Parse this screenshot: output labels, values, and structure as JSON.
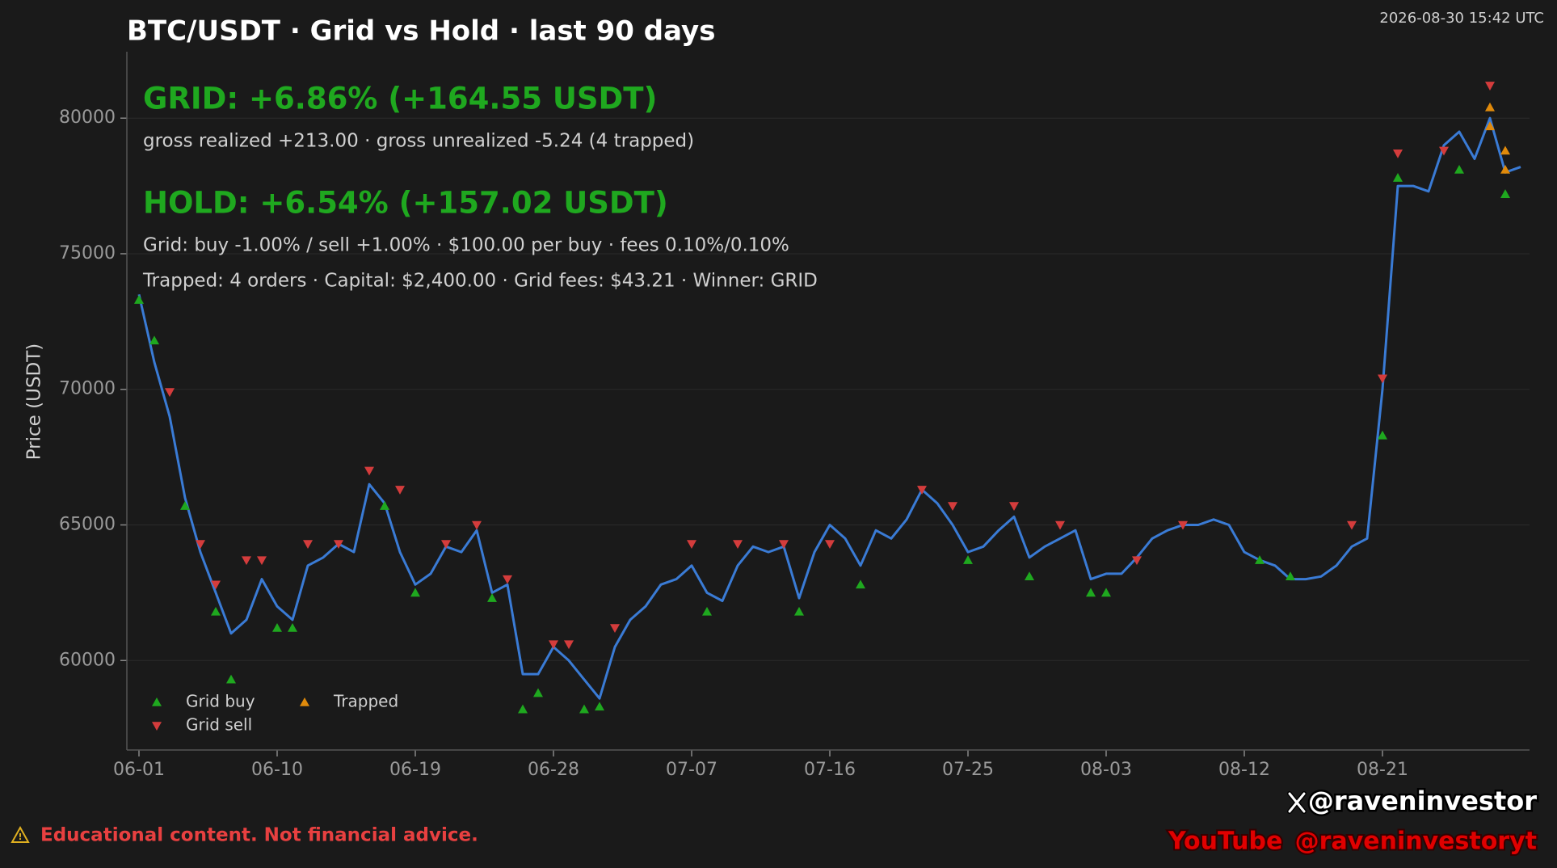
{
  "chart_data": {
    "type": "line",
    "title": "BTC/USDT · Grid vs Hold · last 90 days",
    "timestamp": "2026-08-30 15:42 UTC",
    "annotations": [
      "GRID: +6.86%  (+164.55 USDT)",
      "gross realized +213.00  ·  gross unrealized -5.24  (4 trapped)",
      "HOLD: +6.54%  (+157.02 USDT)",
      "Grid: buy -1.00% / sell +1.00%  ·  $100.00 per buy  ·  fees 0.10%/0.10%",
      "Trapped: 4 orders  ·  Capital: $2,400.00  ·  Grid fees: $43.21  ·  Winner: GRID"
    ],
    "annotation_colors": [
      "#1fa81f",
      "#d0d0d0",
      "#1fa81f",
      "#d0d0d0",
      "#d0d0d0"
    ],
    "y_label": "Price (USDT)",
    "disclaimer": "Educational content. Not financial advice.",
    "x_handle": "@raveninvestor",
    "youtube_label": "YouTube",
    "youtube_handle": "@raveninvestoryt",
    "x": [
      "06-01",
      "06-02",
      "06-03",
      "06-04",
      "06-05",
      "06-06",
      "06-07",
      "06-08",
      "06-09",
      "06-10",
      "06-11",
      "06-12",
      "06-13",
      "06-14",
      "06-15",
      "06-16",
      "06-17",
      "06-18",
      "06-19",
      "06-20",
      "06-21",
      "06-22",
      "06-23",
      "06-24",
      "06-25",
      "06-26",
      "06-27",
      "06-28",
      "06-29",
      "06-30",
      "07-01",
      "07-02",
      "07-03",
      "07-04",
      "07-05",
      "07-06",
      "07-07",
      "07-08",
      "07-09",
      "07-10",
      "07-11",
      "07-12",
      "07-13",
      "07-14",
      "07-15",
      "07-16",
      "07-17",
      "07-18",
      "07-19",
      "07-20",
      "07-21",
      "07-22",
      "07-23",
      "07-24",
      "07-25",
      "07-26",
      "07-27",
      "07-28",
      "07-29",
      "07-30",
      "07-31",
      "08-01",
      "08-02",
      "08-03",
      "08-04",
      "08-05",
      "08-06",
      "08-07",
      "08-08",
      "08-09",
      "08-10",
      "08-11",
      "08-12",
      "08-13",
      "08-14",
      "08-15",
      "08-16",
      "08-17",
      "08-18",
      "08-19",
      "08-20",
      "08-21",
      "08-22",
      "08-23",
      "08-24",
      "08-25",
      "08-26",
      "08-27",
      "08-28",
      "08-29",
      "08-30"
    ],
    "series": [
      {
        "color": "#3a7bd5",
        "values": [
          73500,
          71000,
          69000,
          66000,
          64000,
          62500,
          61000,
          61500,
          63000,
          62000,
          61500,
          63500,
          63800,
          64300,
          64000,
          66500,
          65800,
          64000,
          62800,
          63200,
          64200,
          64000,
          64800,
          62500,
          62800,
          59500,
          59500,
          60500,
          60000,
          59300,
          58600,
          60500,
          61500,
          62000,
          62800,
          63000,
          63500,
          62500,
          62200,
          63500,
          64200,
          64000,
          64200,
          62300,
          64000,
          65000,
          64500,
          63500,
          64800,
          64500,
          65200,
          66300,
          65800,
          65000,
          64000,
          64200,
          64800,
          65300,
          63800,
          64200,
          64500,
          64800,
          63000,
          63200,
          63200,
          63800,
          64500,
          64800,
          65000,
          65000,
          65200,
          65000,
          64000,
          63700,
          63500,
          63000,
          63000,
          63100,
          63500,
          64200,
          64500,
          70000,
          77500,
          77500,
          77300,
          79000,
          79500,
          78500,
          80000,
          78000,
          78200
        ]
      }
    ],
    "markers": [
      {
        "name": "Grid buy",
        "color": "#1fa81f",
        "shape": "up",
        "x": [
          "06-01",
          "06-02",
          "06-04",
          "06-06",
          "06-07",
          "06-10",
          "06-11",
          "06-17",
          "06-19",
          "06-24",
          "06-26",
          "06-27",
          "06-30",
          "07-01",
          "07-08",
          "07-14",
          "07-18",
          "07-25",
          "07-29",
          "08-02",
          "08-03",
          "08-13",
          "08-15",
          "08-21",
          "08-22",
          "08-26",
          "08-29"
        ],
        "values": [
          73300,
          71800,
          65700,
          61800,
          59300,
          61200,
          61200,
          65700,
          62500,
          62300,
          58200,
          58800,
          58200,
          58300,
          61800,
          61800,
          62800,
          63700,
          63100,
          62500,
          62500,
          63700,
          63100,
          68300,
          77800,
          78100,
          77200
        ]
      },
      {
        "name": "Grid sell",
        "color": "#d43c3c",
        "shape": "down",
        "x": [
          "06-03",
          "06-05",
          "06-06",
          "06-08",
          "06-09",
          "06-12",
          "06-14",
          "06-16",
          "06-18",
          "06-21",
          "06-23",
          "06-25",
          "06-28",
          "06-29",
          "07-02",
          "07-07",
          "07-10",
          "07-13",
          "07-16",
          "07-22",
          "07-24",
          "07-28",
          "07-31",
          "08-05",
          "08-08",
          "08-19",
          "08-21",
          "08-22",
          "08-25",
          "08-28"
        ],
        "values": [
          69900,
          64300,
          62800,
          63700,
          63700,
          64300,
          64300,
          67000,
          66300,
          64300,
          65000,
          63000,
          60600,
          60600,
          61200,
          64300,
          64300,
          64300,
          64300,
          66300,
          65700,
          65700,
          65000,
          63700,
          65000,
          65000,
          70400,
          78700,
          78800,
          81200
        ]
      },
      {
        "name": "Trapped",
        "color": "#e08a0b",
        "shape": "up",
        "x": [
          "08-28",
          "08-28",
          "08-29",
          "08-29"
        ],
        "values": [
          80400,
          79700,
          78800,
          78100
        ]
      }
    ],
    "ylim": [
      56700,
      82450
    ],
    "yticks": [
      60000,
      65000,
      70000,
      75000,
      80000
    ],
    "xticks": [
      "06-01",
      "06-10",
      "06-19",
      "06-28",
      "07-07",
      "07-16",
      "07-25",
      "08-03",
      "08-12",
      "08-21"
    ],
    "grid": true
  }
}
